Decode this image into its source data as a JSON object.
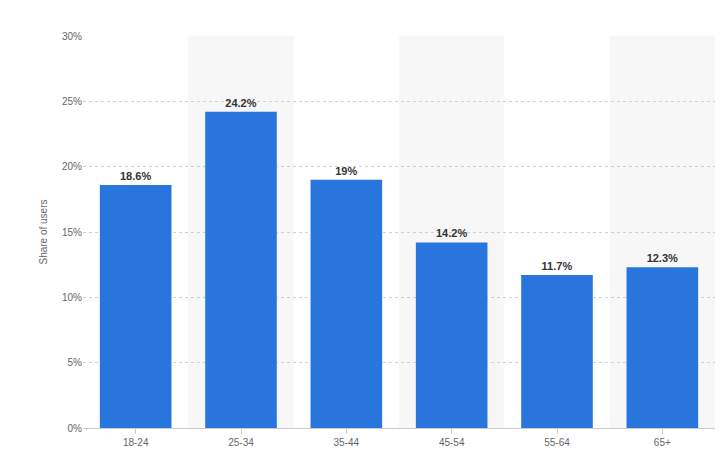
{
  "chart_data": {
    "type": "bar",
    "categories": [
      "18-24",
      "25-34",
      "35-44",
      "45-54",
      "55-64",
      "65+"
    ],
    "values": [
      18.6,
      24.2,
      19,
      14.2,
      11.7,
      12.3
    ],
    "value_labels": [
      "18.6%",
      "24.2%",
      "19%",
      "14.2%",
      "11.7%",
      "12.3%"
    ],
    "color": "#2876dd",
    "ylabel": "Share of users",
    "ylim": [
      0,
      30
    ],
    "yticks": [
      {
        "value": 0,
        "label": "0%"
      },
      {
        "value": 5,
        "label": "5%"
      },
      {
        "value": 10,
        "label": "10%"
      },
      {
        "value": 15,
        "label": "15%"
      },
      {
        "value": 20,
        "label": "20%"
      },
      {
        "value": 25,
        "label": "25%"
      },
      {
        "value": 30,
        "label": "30%"
      }
    ],
    "grid": true,
    "data_labels": true
  }
}
